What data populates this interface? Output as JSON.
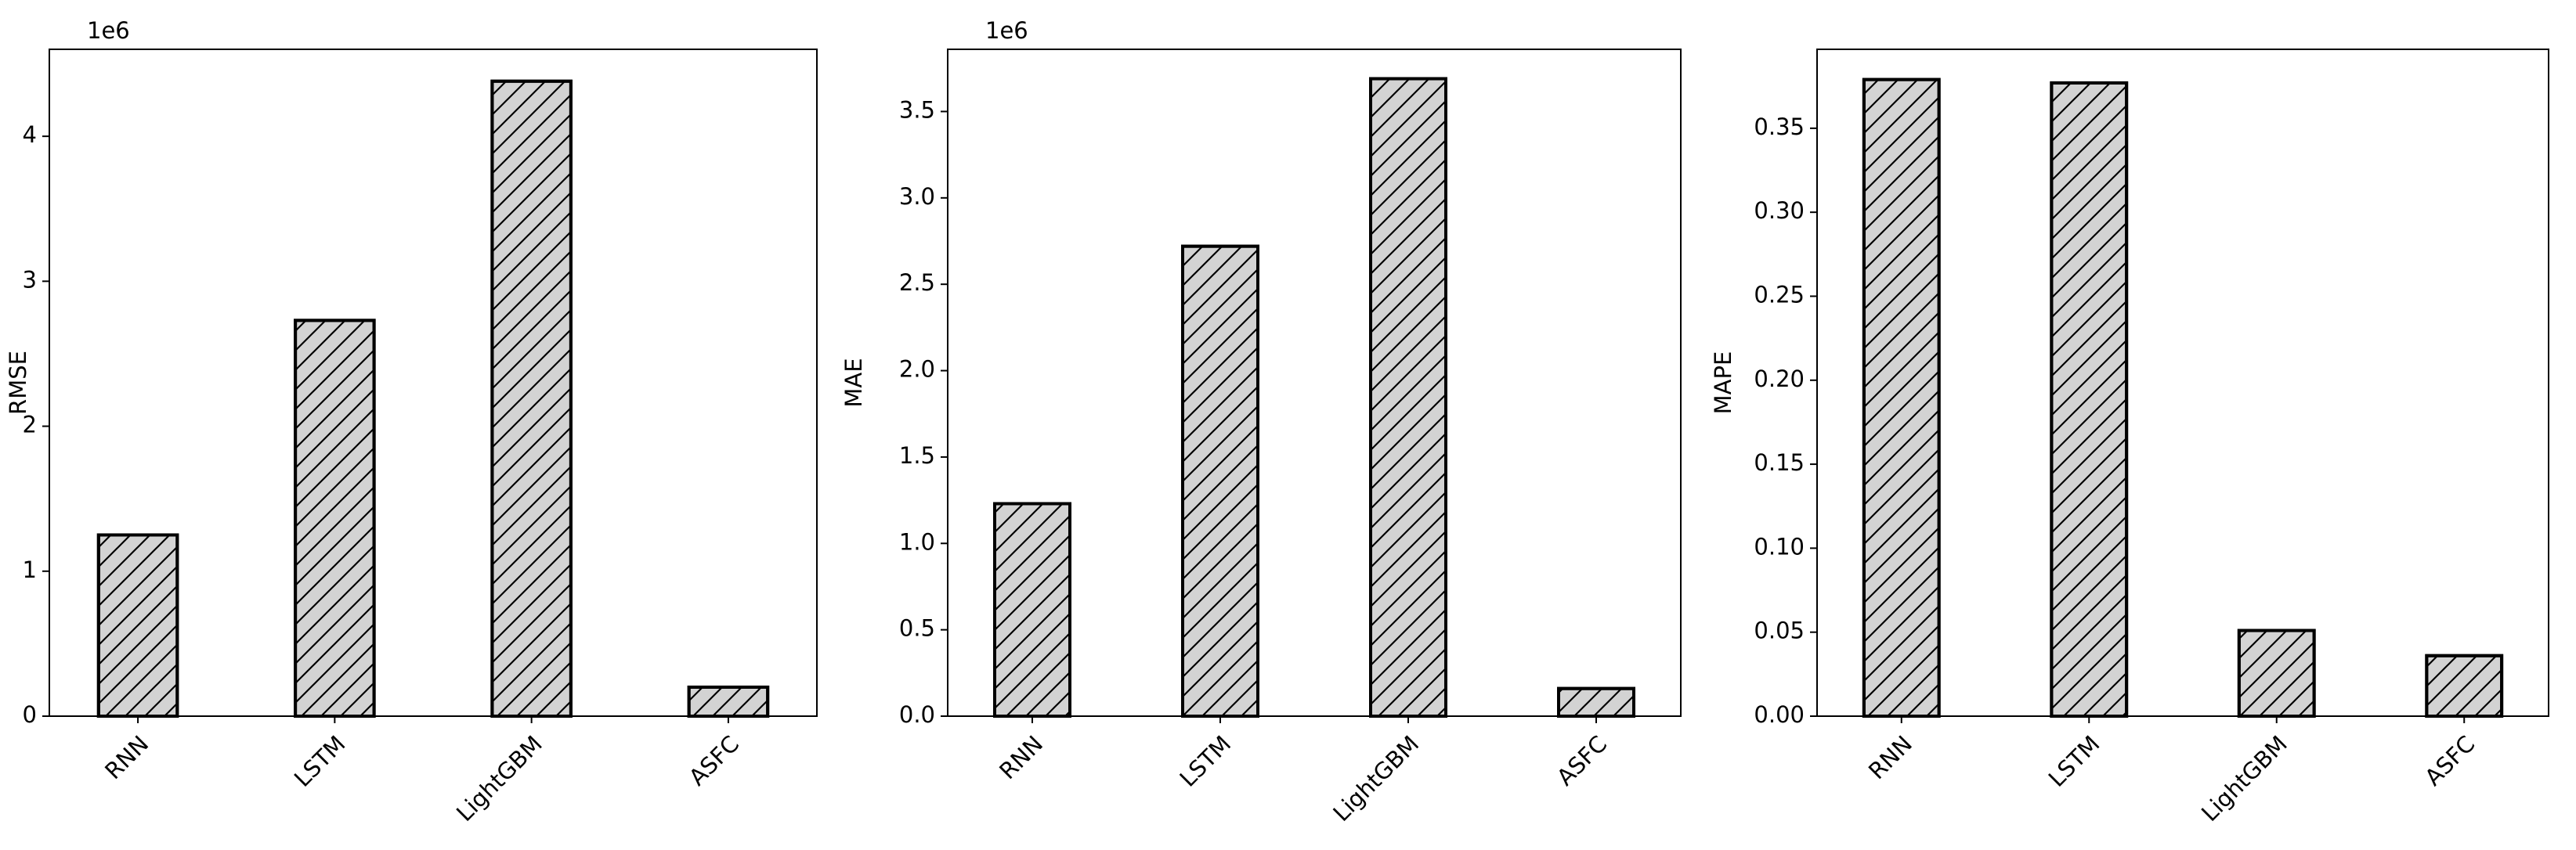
{
  "chart_data": [
    {
      "type": "bar",
      "ylabel": "RMSE",
      "offset_text": "1e6",
      "categories": [
        "RNN",
        "LSTM",
        "LightGBM",
        "ASFC"
      ],
      "values": [
        1.25,
        2.73,
        4.38,
        0.2
      ],
      "color": "#d3d3d3",
      "edgecolor": "#000000",
      "hatch": "/",
      "ylim": [
        0,
        4.6
      ],
      "yticks": [
        0,
        1,
        2,
        3,
        4
      ]
    },
    {
      "type": "bar",
      "ylabel": "MAE",
      "offset_text": "1e6",
      "categories": [
        "RNN",
        "LSTM",
        "LightGBM",
        "ASFC"
      ],
      "values": [
        1.23,
        2.72,
        3.69,
        0.16
      ],
      "color": "#d3d3d3",
      "edgecolor": "#000000",
      "hatch": "/",
      "ylim": [
        0,
        3.86
      ],
      "yticks": [
        {
          "value": 0,
          "label": "0.0"
        },
        0.5,
        {
          "value": 1,
          "label": "1.0"
        },
        1.5,
        {
          "value": 2,
          "label": "2.0"
        },
        2.5,
        {
          "value": 3,
          "label": "3.0"
        },
        3.5
      ]
    },
    {
      "type": "bar",
      "ylabel": "MAPE",
      "categories": [
        "RNN",
        "LSTM",
        "LightGBM",
        "ASFC"
      ],
      "values": [
        0.379,
        0.377,
        0.051,
        0.036
      ],
      "color": "#d3d3d3",
      "edgecolor": "#000000",
      "hatch": "/",
      "ylim": [
        0,
        0.397
      ],
      "yticks": [
        {
          "value": 0,
          "label": "0.00"
        },
        0.05,
        {
          "value": 0.1,
          "label": "0.10"
        },
        0.15,
        {
          "value": 0.2,
          "label": "0.20"
        },
        0.25,
        {
          "value": 0.3,
          "label": "0.30"
        },
        0.35
      ]
    }
  ]
}
